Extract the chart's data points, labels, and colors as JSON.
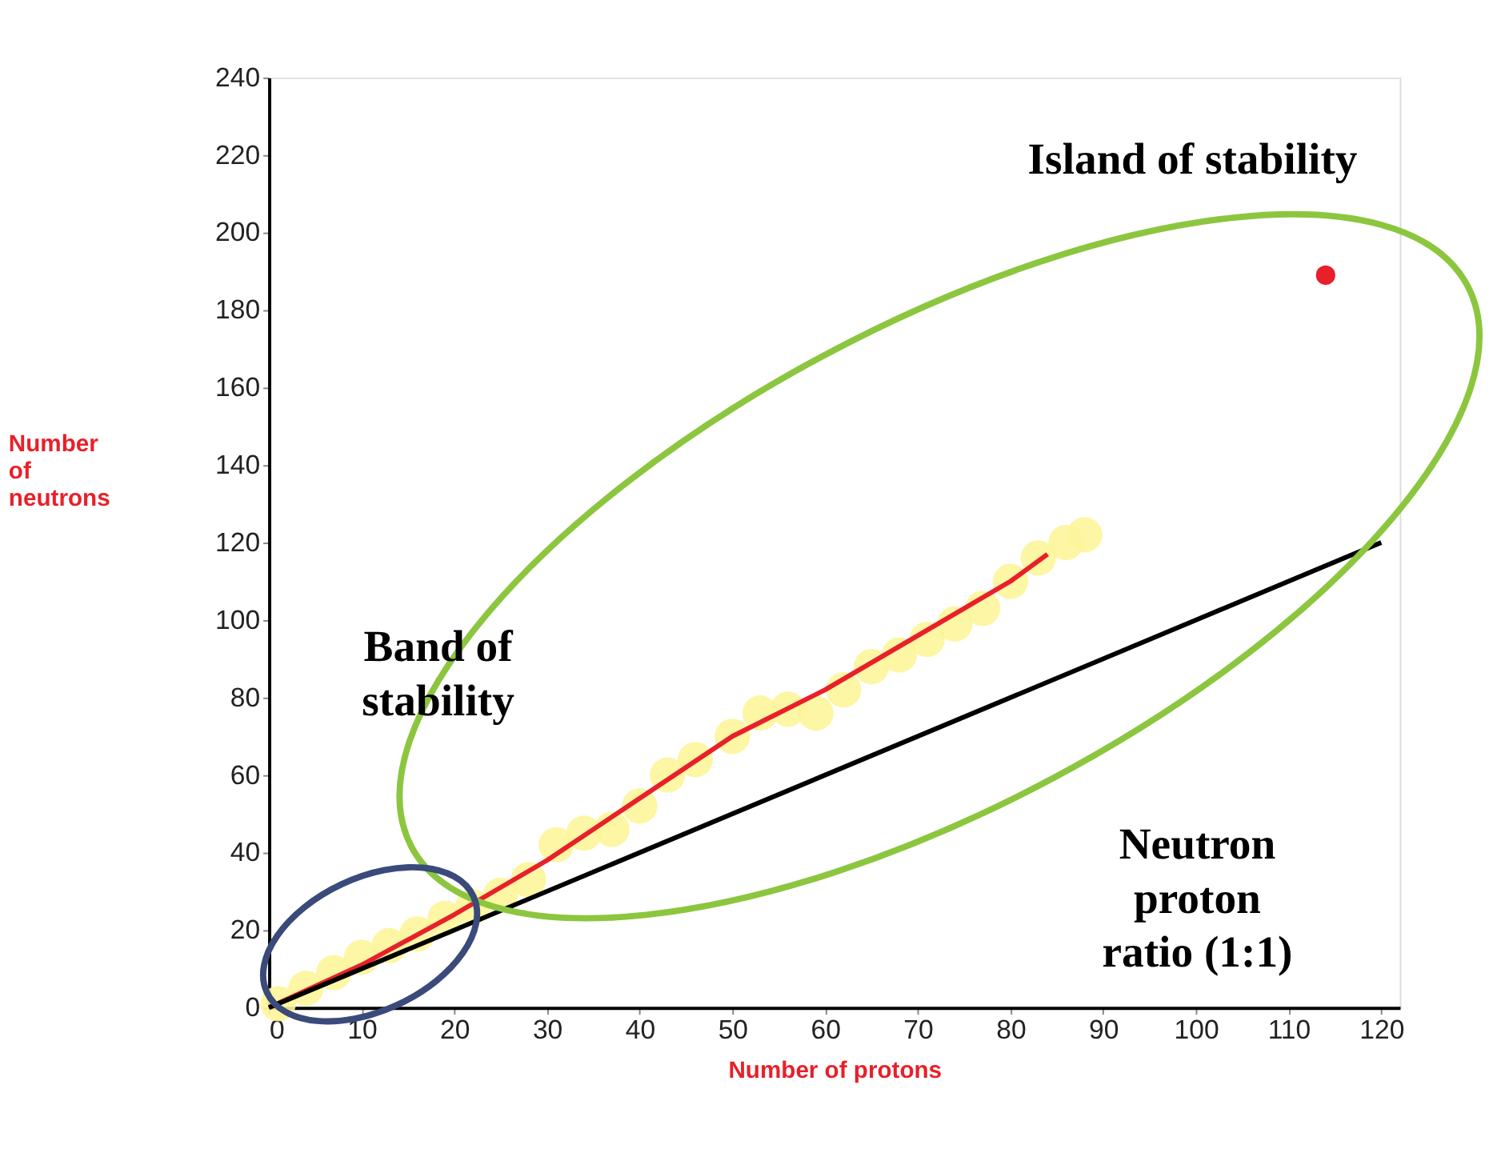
{
  "chart_data": {
    "type": "line",
    "xlabel": "Number of protons",
    "ylabel": "Number of neutrons",
    "xlim": [
      0,
      122
    ],
    "ylim": [
      0,
      240
    ],
    "xticks": [
      0,
      10,
      20,
      30,
      40,
      50,
      60,
      70,
      80,
      90,
      100,
      110,
      120
    ],
    "yticks": [
      0,
      20,
      40,
      60,
      80,
      100,
      120,
      140,
      160,
      180,
      200,
      220,
      240
    ],
    "grid": false,
    "series": [
      {
        "type": "scatter",
        "marker": "circle",
        "color": "#fdf59a",
        "x": [
          1,
          4,
          7,
          10,
          13,
          16,
          19,
          22,
          25,
          28,
          31,
          34,
          37,
          40,
          43,
          46,
          50,
          53,
          56,
          59,
          62,
          65,
          68,
          71,
          74,
          77,
          80,
          83,
          86,
          88
        ],
        "values": [
          1,
          5,
          9,
          13,
          16,
          19,
          23,
          26,
          29,
          33,
          42,
          45,
          46,
          52,
          60,
          64,
          70,
          76,
          77,
          76,
          82,
          88,
          91,
          95,
          99,
          103,
          110,
          116,
          120,
          122
        ]
      },
      {
        "marker": "none",
        "color": "#e8202a",
        "x": [
          0,
          10,
          20,
          30,
          40,
          45,
          50,
          60,
          70,
          80,
          84
        ],
        "values": [
          0,
          11,
          24,
          38,
          54,
          62,
          70,
          82,
          96,
          110,
          117
        ]
      },
      {
        "marker": "none",
        "color": "#000000",
        "x": [
          0,
          120
        ],
        "values": [
          0,
          120
        ]
      },
      {
        "type": "scatter",
        "marker": "circle",
        "color": "#e8202a",
        "x": [
          114
        ],
        "values": [
          189
        ]
      }
    ],
    "annotations": [
      "Island of stability",
      "Band of stability",
      "Neutron proton ratio (1:1)"
    ]
  }
}
